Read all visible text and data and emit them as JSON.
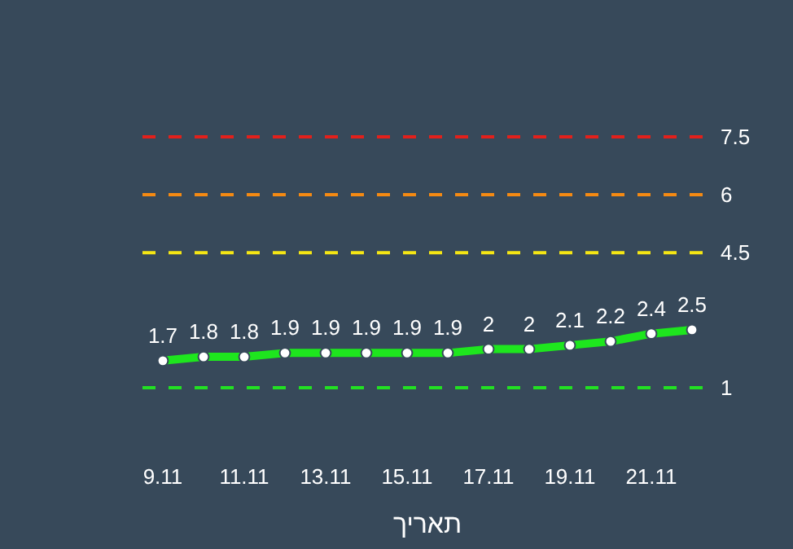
{
  "chart_data": {
    "type": "line",
    "xlabel": "תאריך",
    "categories": [
      "9.11",
      null,
      "11.11",
      null,
      "13.11",
      null,
      "15.11",
      null,
      "17.11",
      null,
      "19.11",
      null,
      "21.11",
      null
    ],
    "values": [
      1.7,
      1.8,
      1.8,
      1.9,
      1.9,
      1.9,
      1.9,
      1.9,
      2,
      2,
      2.1,
      2.2,
      2.4,
      2.5
    ],
    "color": "#1ee61e",
    "marker": "circle",
    "data_labels": true,
    "tick_labels": "x",
    "ref_lines": [
      {
        "axis": "y",
        "value": 7.5,
        "label": "7.5",
        "color": "#e3201b",
        "line_style": "dashed"
      },
      {
        "axis": "y",
        "value": 6,
        "label": "6",
        "color": "#f58a12",
        "line_style": "dashed"
      },
      {
        "axis": "y",
        "value": 4.5,
        "label": "4.5",
        "color": "#f5e614",
        "line_style": "dashed"
      },
      {
        "axis": "y",
        "value": 1,
        "label": "1",
        "color": "#22e022",
        "line_style": "dashed"
      }
    ]
  }
}
